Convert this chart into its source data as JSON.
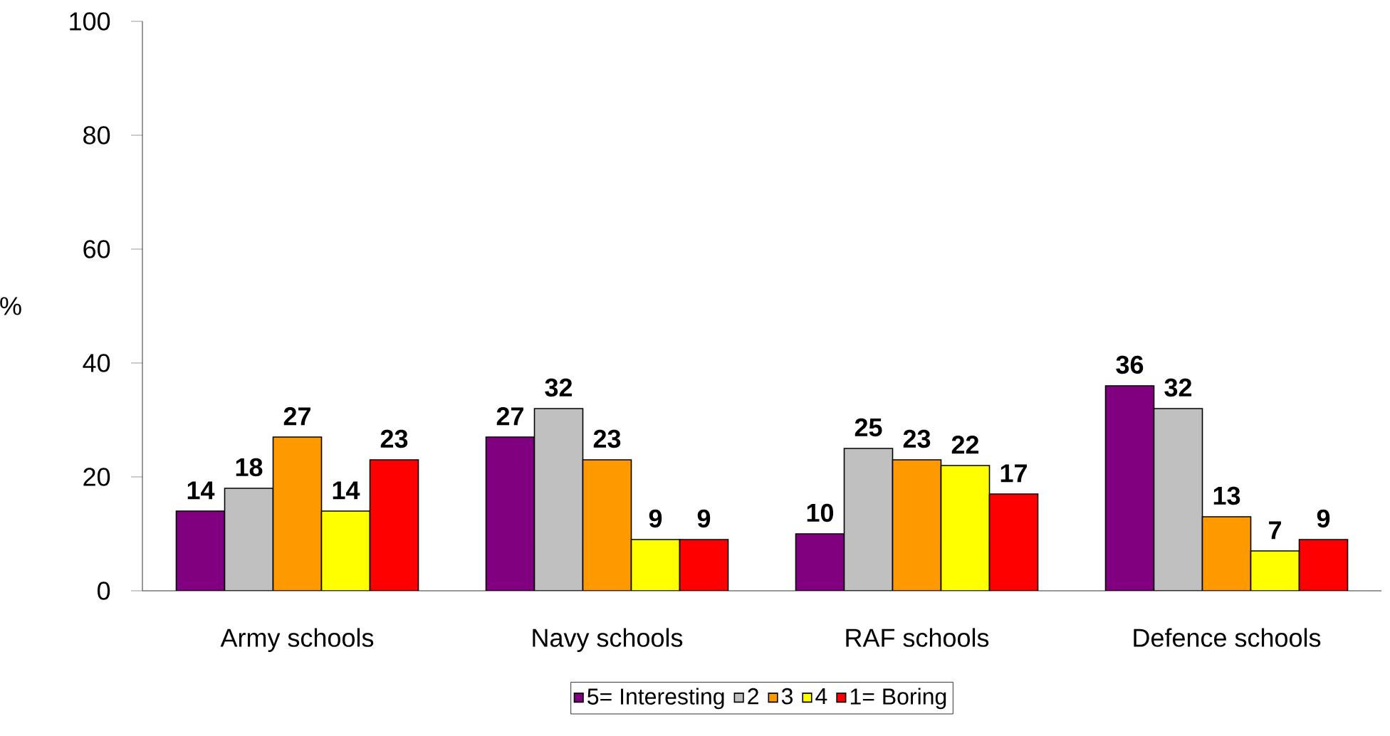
{
  "chart_data": {
    "type": "bar",
    "ylabel": "%",
    "categories": [
      "Army schools",
      "Navy schools",
      "RAF schools",
      "Defence schools"
    ],
    "series": [
      {
        "name": "5= Interesting",
        "color": "#800080",
        "values": [
          14,
          27,
          10,
          36
        ]
      },
      {
        "name": "2",
        "color": "#c0c0c0",
        "values": [
          18,
          32,
          25,
          32
        ]
      },
      {
        "name": "3",
        "color": "#ff9900",
        "values": [
          27,
          23,
          23,
          13
        ]
      },
      {
        "name": "4",
        "color": "#ffff00",
        "values": [
          14,
          9,
          22,
          7
        ]
      },
      {
        "name": "1= Boring",
        "color": "#ff0000",
        "values": [
          23,
          9,
          17,
          9
        ]
      }
    ],
    "ylim": [
      0,
      100
    ],
    "yticks": [
      0,
      20,
      40,
      60,
      80,
      100
    ],
    "grid": false,
    "legend": "bottom",
    "data_labels": true
  }
}
